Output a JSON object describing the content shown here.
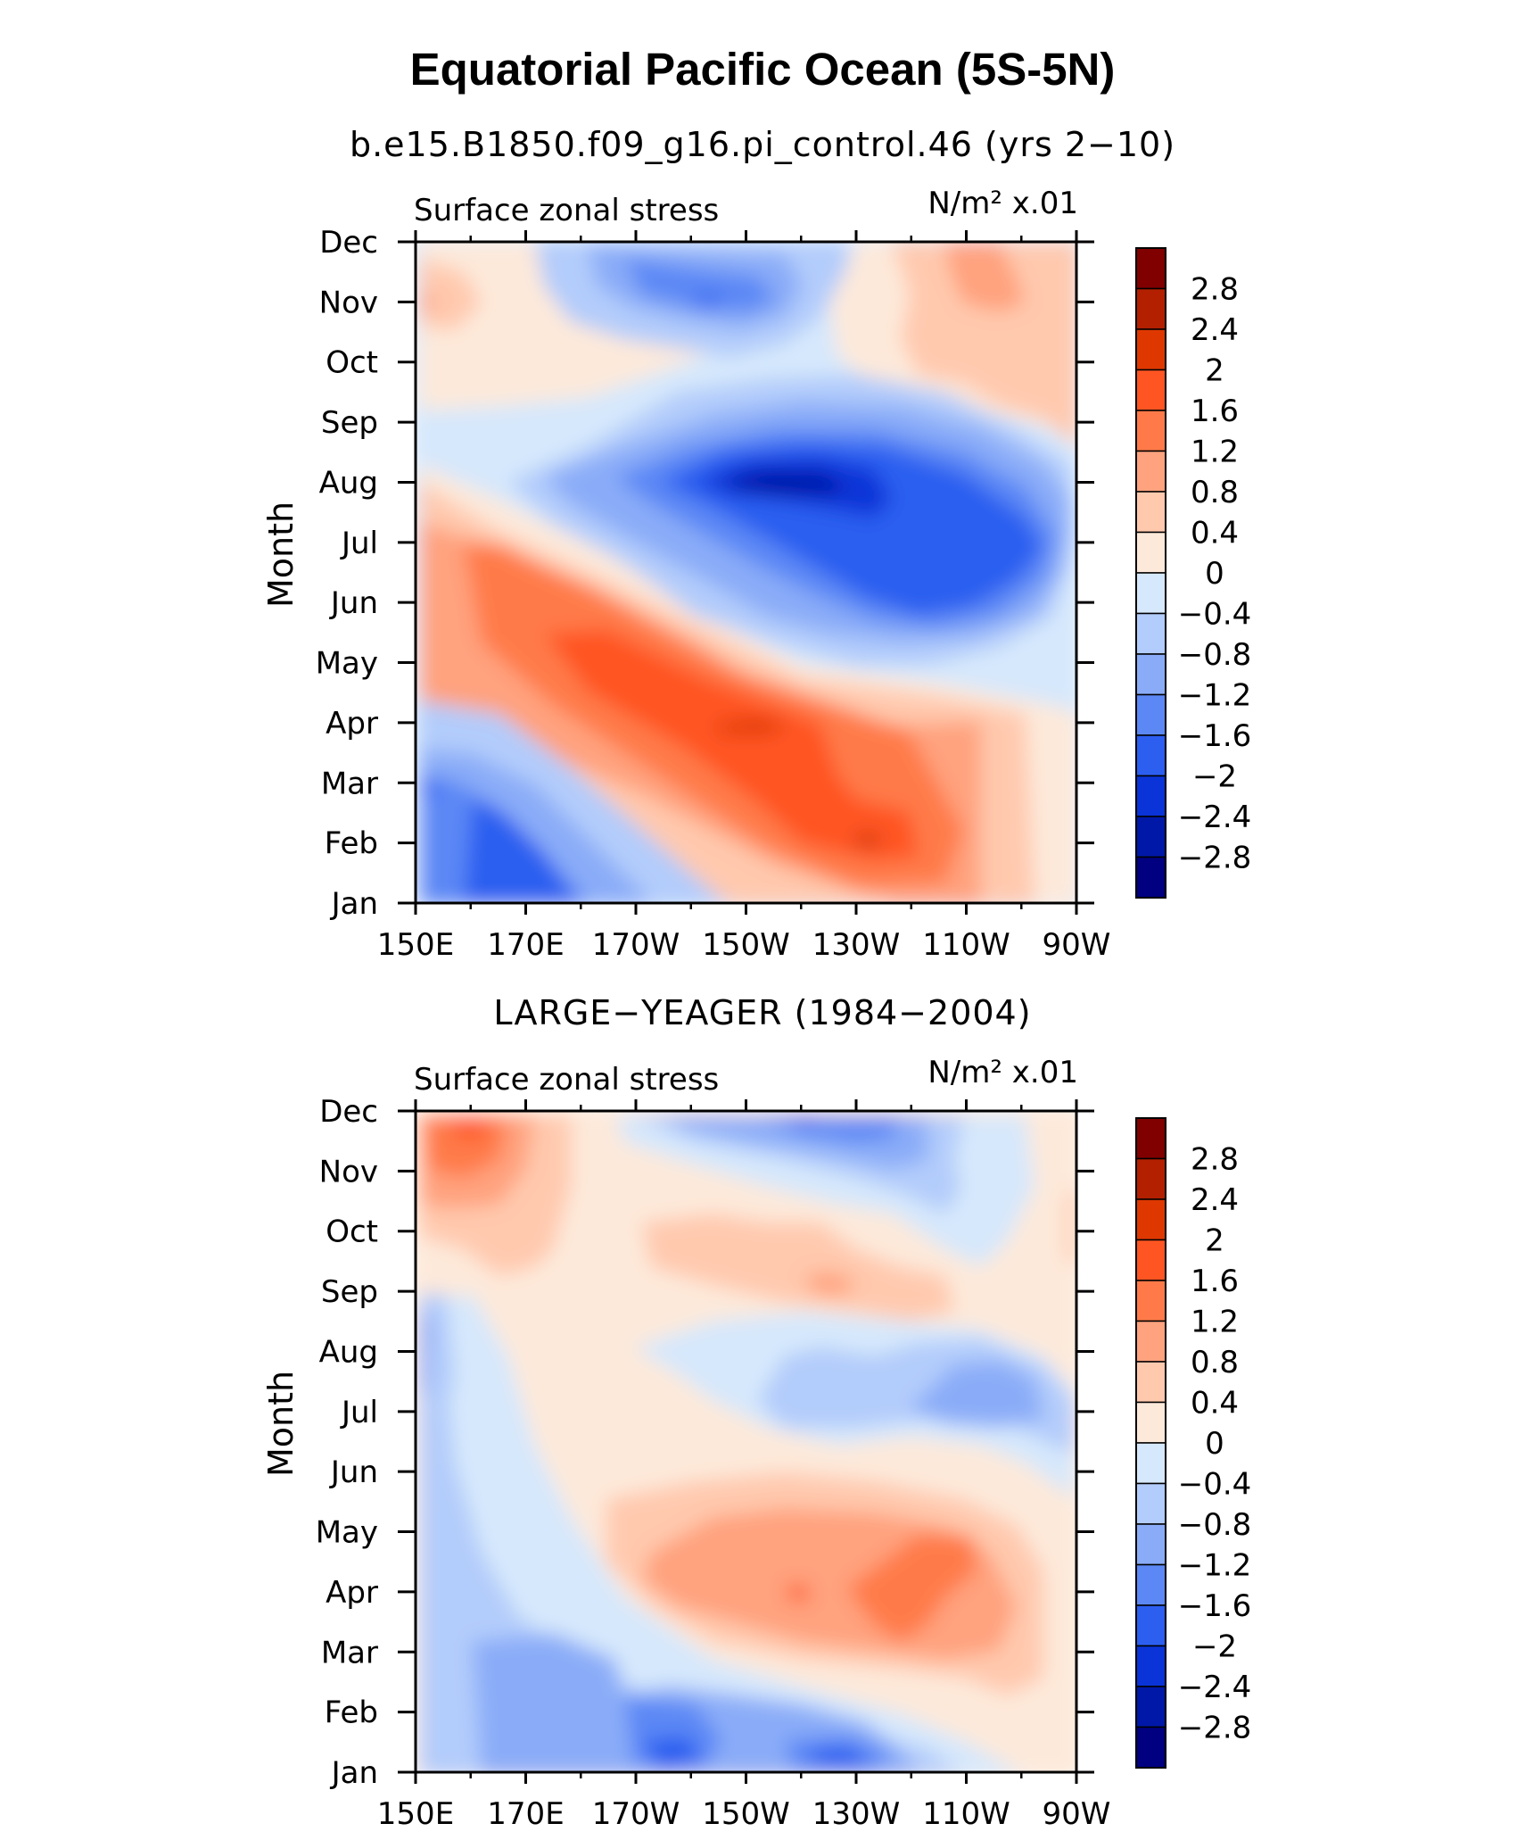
{
  "title": "Equatorial Pacific Ocean (5S-5N)",
  "colorbar": {
    "labels": [
      "2.8",
      "2.4",
      "2",
      "1.6",
      "1.2",
      "0.8",
      "0.4",
      "0",
      "−0.4",
      "−0.8",
      "−1.2",
      "−1.6",
      "−2",
      "−2.4",
      "−2.8"
    ],
    "colors": [
      "#800000",
      "#b32000",
      "#de3800",
      "#ff5522",
      "#ff7a48",
      "#ffa27e",
      "#ffc9ae",
      "#fde9da",
      "#d6e8fc",
      "#b2ccfb",
      "#8aacf8",
      "#5c88f5",
      "#2c5ef0",
      "#0a34d8",
      "#0018a8",
      "#000080"
    ]
  },
  "chart_data": [
    {
      "type": "heatmap",
      "subtitle": "b.e15.B1850.f09_g16.pi_control.46 (yrs 2−10)",
      "left_label": "Surface zonal stress",
      "right_label": "N/m² x.01",
      "ylabel": "Month",
      "xlabel": "",
      "x_ticks": [
        "150E",
        "170E",
        "170W",
        "150W",
        "130W",
        "110W",
        "90W"
      ],
      "y_ticks": [
        "Jan",
        "Feb",
        "Mar",
        "Apr",
        "May",
        "Jun",
        "Jul",
        "Aug",
        "Sep",
        "Oct",
        "Nov",
        "Dec"
      ],
      "xlim": [
        "150E",
        "90W"
      ],
      "value_range": [
        -2.8,
        2.8
      ],
      "contour_interval": 0.4,
      "features": [
        {
          "lon": 165,
          "month": "Jan",
          "value": -1.6
        },
        {
          "lon": 150,
          "month": "Mar",
          "value": -1.6
        },
        {
          "lon": 205,
          "month": "Apr",
          "value": 2.0
        },
        {
          "lon": 210,
          "month": "Apr",
          "value": 2.4
        },
        {
          "lon": 232,
          "month": "Feb",
          "value": 2.4
        },
        {
          "lon": 195,
          "month": "Jun",
          "value": 0.8
        },
        {
          "lon": 215,
          "month": "Aug",
          "value": -2.4
        },
        {
          "lon": 235,
          "month": "Jul",
          "value": -2.0
        },
        {
          "lon": 200,
          "month": "Nov",
          "value": -1.6
        },
        {
          "lon": 255,
          "month": "Nov",
          "value": 0.8
        },
        {
          "lon": 152,
          "month": "Nov",
          "value": 0.8
        },
        {
          "lon": 255,
          "month": "Feb",
          "value": 0.4
        },
        {
          "lon": 265,
          "month": "Jul",
          "value": -0.4
        }
      ]
    },
    {
      "type": "heatmap",
      "subtitle": "LARGE−YEAGER (1984−2004)",
      "left_label": "Surface zonal stress",
      "right_label": "N/m² x.01",
      "ylabel": "Month",
      "xlabel": "",
      "x_ticks": [
        "150E",
        "170E",
        "170W",
        "150W",
        "130W",
        "110W",
        "90W"
      ],
      "y_ticks": [
        "Jan",
        "Feb",
        "Mar",
        "Apr",
        "May",
        "Jun",
        "Jul",
        "Aug",
        "Sep",
        "Oct",
        "Nov",
        "Dec"
      ],
      "xlim": [
        "150E",
        "90W"
      ],
      "value_range": [
        -2.8,
        2.8
      ],
      "contour_interval": 0.4,
      "features": [
        {
          "lon": 159,
          "month": "Dec",
          "value": 1.6
        },
        {
          "lon": 168,
          "month": "Nov",
          "value": 0.8
        },
        {
          "lon": 215,
          "month": "Oct",
          "value": 0.4
        },
        {
          "lon": 220,
          "month": "Sep",
          "value": 0.8
        },
        {
          "lon": 215,
          "month": "Dec",
          "value": -1.2
        },
        {
          "lon": 227,
          "month": "Dec",
          "value": -1.6
        },
        {
          "lon": 255,
          "month": "Jul",
          "value": -1.2
        },
        {
          "lon": 225,
          "month": "Jul",
          "value": -0.8
        },
        {
          "lon": 160,
          "month": "Jul",
          "value": -0.4
        },
        {
          "lon": 230,
          "month": "Apr",
          "value": 1.2
        },
        {
          "lon": 218,
          "month": "Apr",
          "value": 1.6
        },
        {
          "lon": 205,
          "month": "May",
          "value": 0.4
        },
        {
          "lon": 175,
          "month": "Feb",
          "value": -0.8
        },
        {
          "lon": 170,
          "month": "Mar",
          "value": -1.2
        },
        {
          "lon": 215,
          "month": "Jan",
          "value": -1.6
        },
        {
          "lon": 157,
          "month": "Aug",
          "value": -1.2
        },
        {
          "lon": 268,
          "month": "Oct",
          "value": 0.4
        }
      ]
    }
  ]
}
